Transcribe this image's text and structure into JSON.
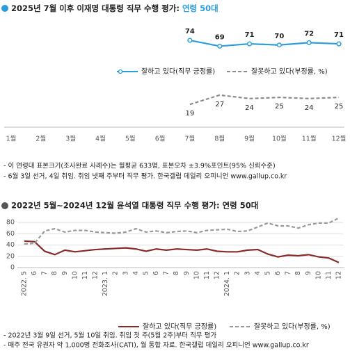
{
  "chart_data": [
    {
      "type": "line",
      "title": "2025년 7월 이후 이재명 대통령 직무 수행 평가:",
      "subtitle": "연령 50대",
      "categories": [
        "1월",
        "2월",
        "3월",
        "4월",
        "5월",
        "6월",
        "7월",
        "8월",
        "9월",
        "10월",
        "11월",
        "12월"
      ],
      "series": [
        {
          "name": "잘하고 있다(직무 긍정률)",
          "color": "#2b9ddc",
          "values": [
            null,
            null,
            null,
            null,
            null,
            null,
            74,
            69,
            71,
            70,
            72,
            71
          ]
        },
        {
          "name": "잘못하고 있다(부정률, %)",
          "color": "#8c8c8c",
          "values": [
            null,
            null,
            null,
            null,
            null,
            null,
            19,
            27,
            24,
            25,
            24,
            25
          ]
        }
      ],
      "ylim": [
        0,
        80
      ],
      "notes": [
        "- 이 연령대 표본크기(조사완료 사례수)는 월평균 633명, 표본오차 ±3.9%포인트(95% 신뢰수준)",
        "- 6월 3일 선거, 4일 취임. 취임 넷째 주부터 직무 평가. 한국갤럽 데일리 오피니언 www.gallup.co.kr"
      ]
    },
    {
      "type": "line",
      "title": "2022년 5월~2024년 12월 윤석열 대통령 직무 수행 평가: 연령 50대",
      "categories": [
        "2022. 5",
        "6",
        "7",
        "8",
        "9",
        "10",
        "11",
        "12",
        "2023. 1",
        "2",
        "3",
        "4",
        "5",
        "6",
        "7",
        "8",
        "9",
        "10",
        "11",
        "12",
        "2024. 1",
        "2",
        "3",
        "4",
        "5",
        "6",
        "7",
        "8",
        "9",
        "10",
        "11",
        "12"
      ],
      "series": [
        {
          "name": "잘하고 있다(직무 긍정률)",
          "color": "#8b2a2a",
          "values": [
            47,
            46,
            29,
            23,
            31,
            28,
            30,
            32,
            33,
            34,
            35,
            33,
            29,
            33,
            31,
            33,
            32,
            31,
            33,
            29,
            28,
            28,
            31,
            32,
            24,
            19,
            22,
            21,
            23,
            19,
            17,
            9
          ]
        },
        {
          "name": "잘못하고 있다(부정률, %)",
          "color": "#999999",
          "values": [
            42,
            43,
            65,
            69,
            63,
            66,
            66,
            63,
            62,
            61,
            63,
            69,
            63,
            65,
            62,
            64,
            65,
            62,
            66,
            67,
            68,
            64,
            65,
            72,
            79,
            74,
            74,
            70,
            76,
            79,
            79,
            88
          ]
        }
      ],
      "ylim": [
        0,
        90
      ],
      "yticks": [
        0,
        20,
        40,
        60,
        80
      ],
      "grid": true,
      "notes": [
        "- 2022년 3월 9일 선거, 5월 10일 취임. 취임 첫 주(5월 2주)부터 직무 평가",
        "- 매주 전국 유권자 약 1,000명 전화조사(CATI), 월 통합 자료. 한국갤럽 데일리 오피니언 www.gallup.co.kr"
      ]
    }
  ]
}
